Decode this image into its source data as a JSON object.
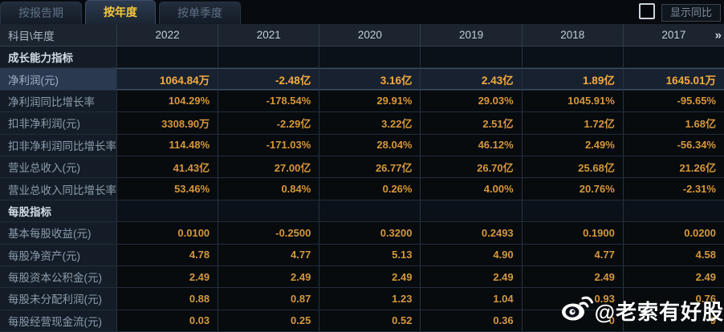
{
  "tabs": [
    {
      "label": "按报告期",
      "active": false
    },
    {
      "label": "按年度",
      "active": true
    },
    {
      "label": "按单季度",
      "active": false
    }
  ],
  "controls": {
    "show_yoy_checkbox_checked": false,
    "show_yoy_label": "显示同比"
  },
  "table": {
    "corner_label": "科目\\年度",
    "years": [
      "2022",
      "2021",
      "2020",
      "2019",
      "2018",
      "2017"
    ],
    "more_icon": "»",
    "rows": [
      {
        "type": "section",
        "label": "成长能力指标",
        "values": [
          "",
          "",
          "",
          "",
          "",
          ""
        ]
      },
      {
        "type": "data",
        "highlight": true,
        "label": "净利润(元)",
        "values": [
          "1064.84万",
          "-2.48亿",
          "3.16亿",
          "2.43亿",
          "1.89亿",
          "1645.01万"
        ]
      },
      {
        "type": "data",
        "label": "净利润同比增长率",
        "values": [
          "104.29%",
          "-178.54%",
          "29.91%",
          "29.03%",
          "1045.91%",
          "-95.65%"
        ]
      },
      {
        "type": "data",
        "label": "扣非净利润(元)",
        "values": [
          "3308.90万",
          "-2.29亿",
          "3.22亿",
          "2.51亿",
          "1.72亿",
          "1.68亿"
        ]
      },
      {
        "type": "data",
        "label": "扣非净利润同比增长率",
        "values": [
          "114.48%",
          "-171.03%",
          "28.04%",
          "46.12%",
          "2.49%",
          "-56.34%"
        ]
      },
      {
        "type": "data",
        "label": "营业总收入(元)",
        "values": [
          "41.43亿",
          "27.00亿",
          "26.77亿",
          "26.70亿",
          "25.68亿",
          "21.26亿"
        ]
      },
      {
        "type": "data",
        "label": "营业总收入同比增长率",
        "values": [
          "53.46%",
          "0.84%",
          "0.26%",
          "4.00%",
          "20.76%",
          "-2.31%"
        ]
      },
      {
        "type": "section",
        "label": "每股指标",
        "values": [
          "",
          "",
          "",
          "",
          "",
          ""
        ]
      },
      {
        "type": "data",
        "label": "基本每股收益(元)",
        "values": [
          "0.0100",
          "-0.2500",
          "0.3200",
          "0.2493",
          "0.1900",
          "0.0200"
        ]
      },
      {
        "type": "data",
        "label": "每股净资产(元)",
        "values": [
          "4.78",
          "4.77",
          "5.13",
          "4.90",
          "4.77",
          "4.58"
        ]
      },
      {
        "type": "data",
        "label": "每股资本公积金(元)",
        "values": [
          "2.49",
          "2.49",
          "2.49",
          "2.49",
          "2.49",
          "2.49"
        ]
      },
      {
        "type": "data",
        "label": "每股未分配利润(元)",
        "values": [
          "0.88",
          "0.87",
          "1.23",
          "1.04",
          "0.93",
          "0.76"
        ]
      },
      {
        "type": "data",
        "label": "每股经营现金流(元)",
        "values": [
          "0.03",
          "0.25",
          "0.52",
          "0.36",
          "0",
          "9"
        ]
      }
    ]
  },
  "watermark": {
    "text": "@老索有好股",
    "icon": "weibo-icon"
  },
  "colors": {
    "accent_value": "#d6973b",
    "highlight_value": "#f3ab3f",
    "active_tab_text": "#f5c63c",
    "label_text": "#8b9cad",
    "grid_line": "#303c4a"
  }
}
